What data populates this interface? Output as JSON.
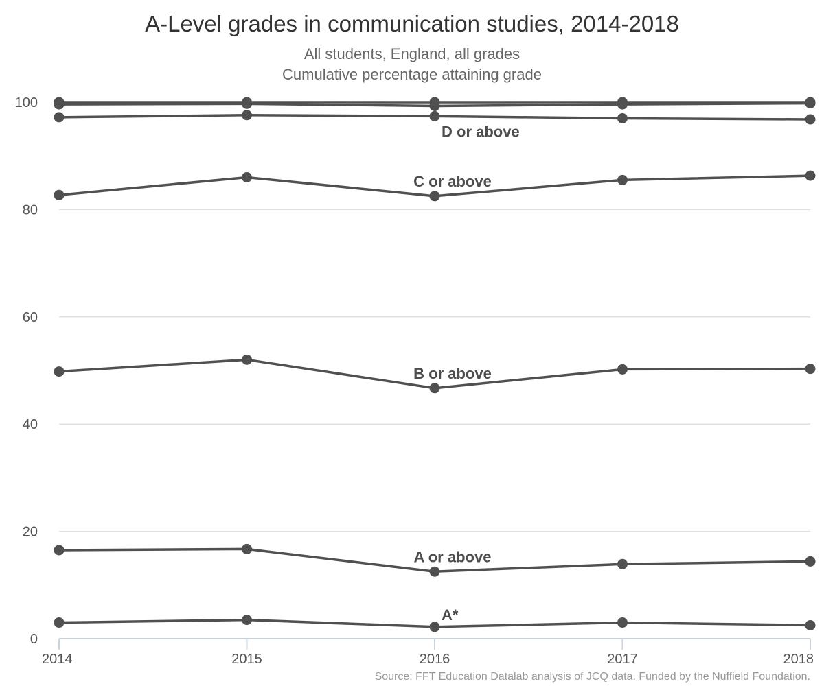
{
  "chart_data": {
    "type": "line",
    "title": "A-Level grades in communication studies, 2014-2018",
    "subtitle_lines": [
      "All students, England, all grades",
      "Cumulative percentage attaining grade"
    ],
    "source": "Source: FFT Education Datalab analysis of JCQ data. Funded by the Nuffield Foundation.",
    "x": [
      "2014",
      "2015",
      "2016",
      "2017",
      "2018"
    ],
    "ylim": [
      0,
      100
    ],
    "yticks": [
      "0",
      "20",
      "40",
      "60",
      "80",
      "100"
    ],
    "grid": "horizontal",
    "line_color": "#505050",
    "series": [
      {
        "name": "A*",
        "values": [
          3.0,
          3.5,
          2.2,
          3.0,
          2.5
        ],
        "label_at": 2
      },
      {
        "name": "A or above",
        "values": [
          16.5,
          16.7,
          12.5,
          13.9,
          14.4
        ],
        "label_at": 2
      },
      {
        "name": "B or above",
        "values": [
          49.8,
          52.0,
          46.7,
          50.2,
          50.3
        ],
        "label_at": 2
      },
      {
        "name": "C or above",
        "values": [
          82.7,
          86.0,
          82.5,
          85.5,
          86.3
        ],
        "label_at": 2
      },
      {
        "name": "D or above",
        "values": [
          97.2,
          97.6,
          97.4,
          97.0,
          96.8
        ],
        "label_at": 2
      },
      {
        "name": "",
        "values": [
          99.6,
          99.7,
          99.3,
          99.6,
          99.8
        ]
      },
      {
        "name": "",
        "values": [
          100.0,
          100.0,
          100.0,
          100.0,
          100.0
        ]
      }
    ]
  }
}
